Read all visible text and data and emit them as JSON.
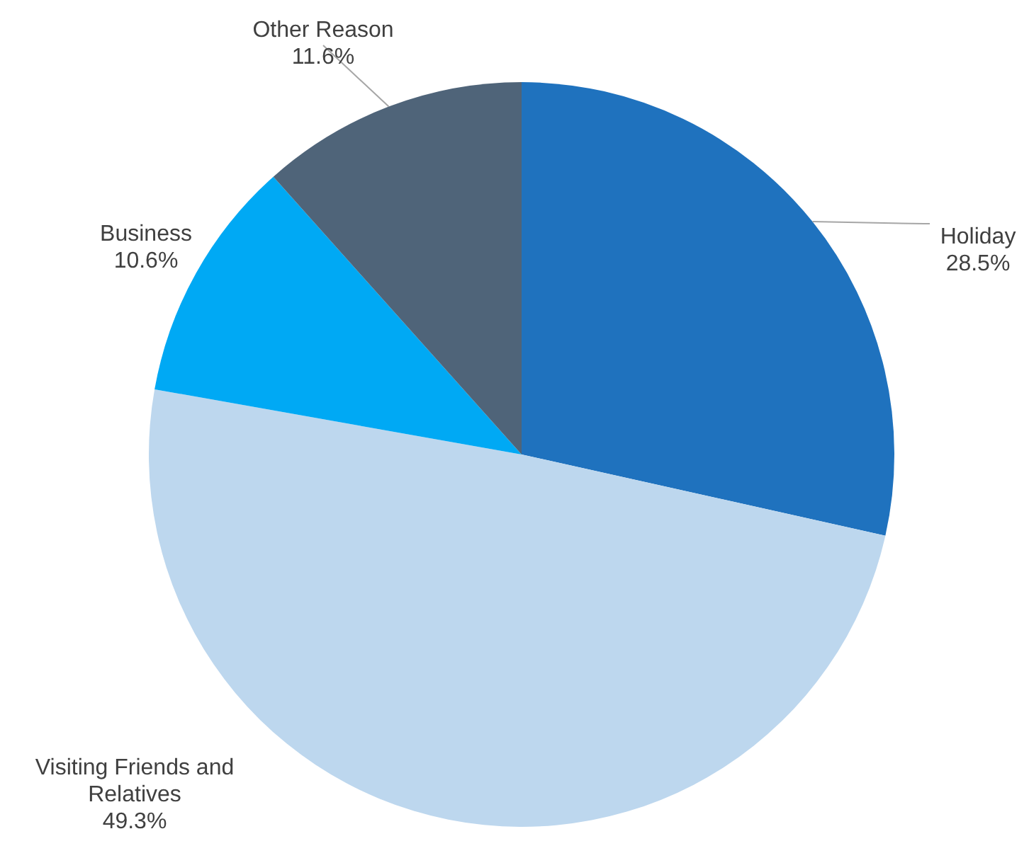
{
  "chart_data": {
    "type": "pie",
    "categories": [
      "Holiday",
      "Visiting Friends and Relatives",
      "Business",
      "Other Reason"
    ],
    "values": [
      28.5,
      49.3,
      10.6,
      11.6
    ],
    "value_labels": [
      "28.5%",
      "49.3%",
      "10.6%",
      "11.6%"
    ],
    "colors": [
      "#1f72be",
      "#bdd7ee",
      "#00a9f4",
      "#4f6479"
    ],
    "legend": false
  }
}
